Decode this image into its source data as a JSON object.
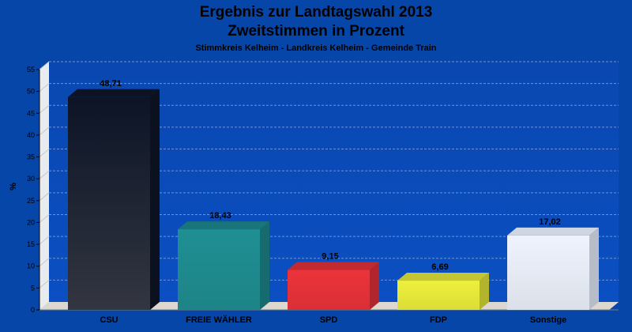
{
  "chart_data": {
    "type": "bar",
    "title": "Ergebnis zur Landtagswahl 2013",
    "subtitle": "Zweitstimmen in Prozent",
    "caption": "Stimmkreis Kelheim - Landkreis Kelheim - Gemeinde Train",
    "xlabel": "",
    "ylabel": "%",
    "ylim": [
      0,
      55
    ],
    "yticks": [
      0,
      5,
      10,
      15,
      20,
      25,
      30,
      35,
      40,
      45,
      50,
      55
    ],
    "grid": true,
    "categories": [
      "CSU",
      "FREIE WÄHLER",
      "SPD",
      "FDP",
      "Sonstige"
    ],
    "values": [
      48.71,
      18.43,
      9.15,
      6.69,
      17.02
    ],
    "value_labels": [
      "48,71",
      "18,43",
      "9,15",
      "6,69",
      "17,02"
    ],
    "colors": [
      "#10172a",
      "#1f8f93",
      "#ec333b",
      "#eef03c",
      "#eef3fd"
    ]
  }
}
